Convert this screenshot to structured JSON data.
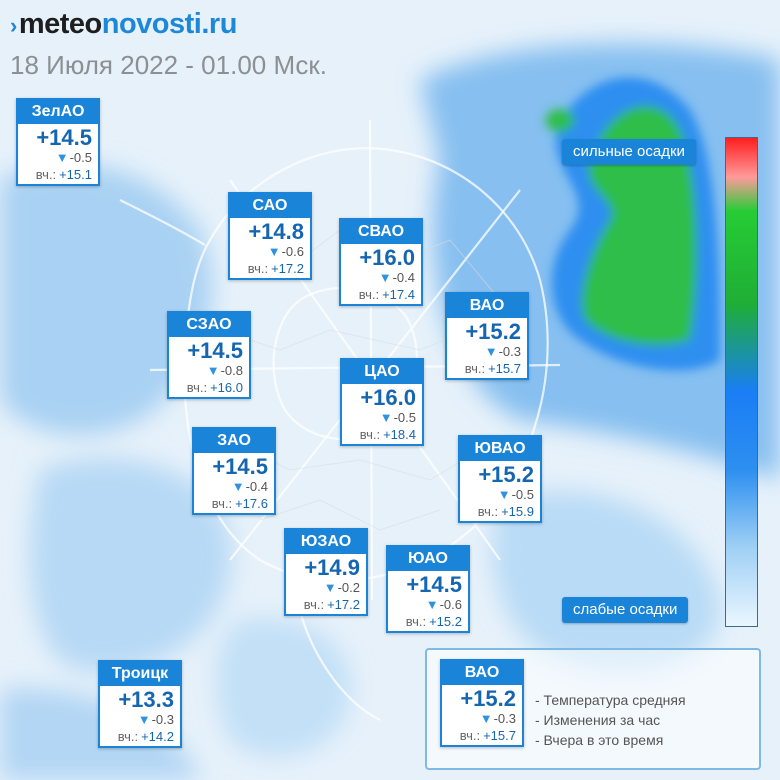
{
  "header": {
    "brand_mark": "›",
    "brand_part1": "meteo",
    "brand_part2": "novosti.ru",
    "date_line": "18 Июля 2022 - 01.00 Мск."
  },
  "colors": {
    "card_blue": "#1a84d9",
    "temp_blue": "#1566b0",
    "precip_green": "#1fae36",
    "precip_blue": "#2d8ff0"
  },
  "districts": [
    {
      "name": "ЗелАО",
      "temp": "+14.5",
      "delta": "-0.5",
      "yday_label": "вч.:",
      "yday": "+15.1"
    },
    {
      "name": "САО",
      "temp": "+14.8",
      "delta": "-0.6",
      "yday_label": "вч.:",
      "yday": "+17.2"
    },
    {
      "name": "СВАО",
      "temp": "+16.0",
      "delta": "-0.4",
      "yday_label": "вч.:",
      "yday": "+17.4"
    },
    {
      "name": "ВАО",
      "temp": "+15.2",
      "delta": "-0.3",
      "yday_label": "вч.:",
      "yday": "+15.7"
    },
    {
      "name": "СЗАО",
      "temp": "+14.5",
      "delta": "-0.8",
      "yday_label": "вч.:",
      "yday": "+16.0"
    },
    {
      "name": "ЦАО",
      "temp": "+16.0",
      "delta": "-0.5",
      "yday_label": "вч.:",
      "yday": "+18.4"
    },
    {
      "name": "ЗАО",
      "temp": "+14.5",
      "delta": "-0.4",
      "yday_label": "вч.:",
      "yday": "+17.6"
    },
    {
      "name": "ЮВАО",
      "temp": "+15.2",
      "delta": "-0.5",
      "yday_label": "вч.:",
      "yday": "+15.9"
    },
    {
      "name": "ЮЗАО",
      "temp": "+14.9",
      "delta": "-0.2",
      "yday_label": "вч.:",
      "yday": "+17.2"
    },
    {
      "name": "ЮАО",
      "temp": "+14.5",
      "delta": "-0.6",
      "yday_label": "вч.:",
      "yday": "+15.2"
    },
    {
      "name": "Троицк",
      "temp": "+13.3",
      "delta": "-0.3",
      "yday_label": "вч.:",
      "yday": "+14.2"
    }
  ],
  "legend": {
    "scale_top": "сильные осадки",
    "scale_bottom": "слабые осадки",
    "key_card": {
      "name": "ВАО",
      "temp": "+15.2",
      "delta": "-0.3",
      "yday_label": "вч.:",
      "yday": "+15.7"
    },
    "key_lines": [
      "- Температура средняя",
      "- Изменения за час",
      "- Вчера в это время"
    ]
  }
}
